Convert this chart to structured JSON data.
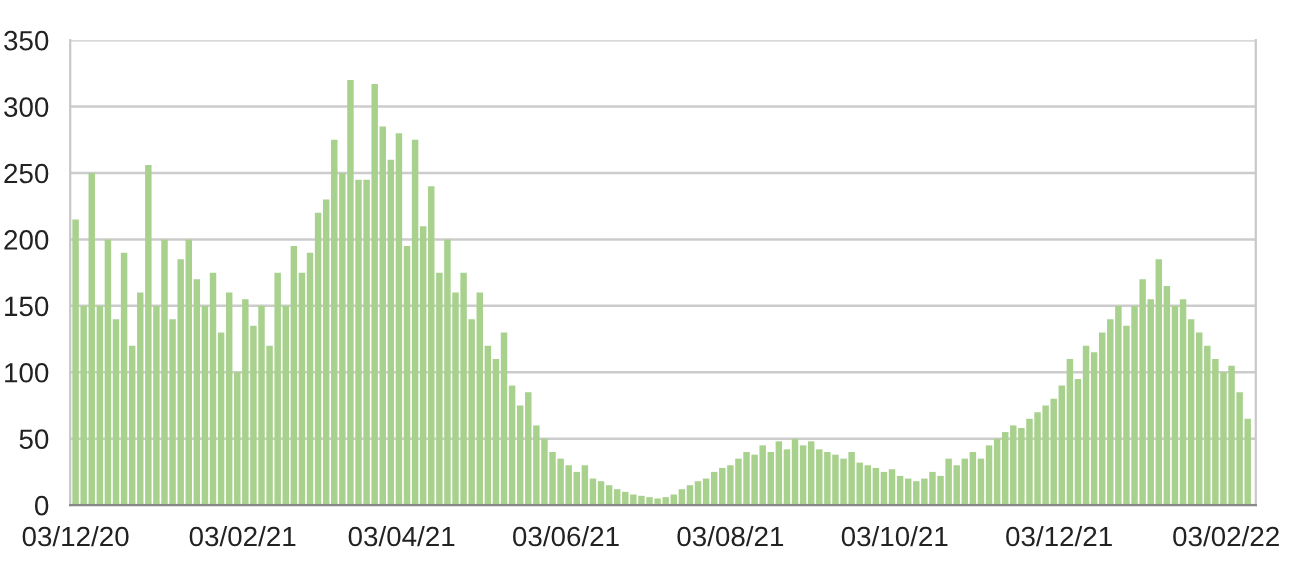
{
  "chart_data": {
    "type": "bar",
    "x": [
      "2020-12-03",
      "2020-12-06",
      "2020-12-09",
      "2020-12-12",
      "2020-12-15",
      "2020-12-18",
      "2020-12-21",
      "2020-12-24",
      "2020-12-27",
      "2020-12-30",
      "2021-01-02",
      "2021-01-05",
      "2021-01-08",
      "2021-01-11",
      "2021-01-14",
      "2021-01-17",
      "2021-01-20",
      "2021-01-23",
      "2021-01-26",
      "2021-01-29",
      "2021-02-01",
      "2021-02-04",
      "2021-02-07",
      "2021-02-10",
      "2021-02-13",
      "2021-02-16",
      "2021-02-19",
      "2021-02-22",
      "2021-02-25",
      "2021-02-28",
      "2021-03-03",
      "2021-03-06",
      "2021-03-09",
      "2021-03-12",
      "2021-03-15",
      "2021-03-18",
      "2021-03-21",
      "2021-03-24",
      "2021-03-27",
      "2021-03-30",
      "2021-04-02",
      "2021-04-05",
      "2021-04-08",
      "2021-04-11",
      "2021-04-14",
      "2021-04-17",
      "2021-04-20",
      "2021-04-23",
      "2021-04-26",
      "2021-04-29",
      "2021-05-02",
      "2021-05-05",
      "2021-05-08",
      "2021-05-11",
      "2021-05-14",
      "2021-05-17",
      "2021-05-20",
      "2021-05-23",
      "2021-05-26",
      "2021-05-29",
      "2021-06-01",
      "2021-06-04",
      "2021-06-07",
      "2021-06-10",
      "2021-06-13",
      "2021-06-16",
      "2021-06-19",
      "2021-06-22",
      "2021-06-25",
      "2021-06-28",
      "2021-07-01",
      "2021-07-04",
      "2021-07-07",
      "2021-07-10",
      "2021-07-13",
      "2021-07-16",
      "2021-07-19",
      "2021-07-22",
      "2021-07-25",
      "2021-07-28",
      "2021-07-31",
      "2021-08-03",
      "2021-08-06",
      "2021-08-09",
      "2021-08-12",
      "2021-08-15",
      "2021-08-18",
      "2021-08-21",
      "2021-08-24",
      "2021-08-27",
      "2021-08-30",
      "2021-09-02",
      "2021-09-05",
      "2021-09-08",
      "2021-09-11",
      "2021-09-14",
      "2021-09-17",
      "2021-09-20",
      "2021-09-23",
      "2021-09-26",
      "2021-09-29",
      "2021-10-02",
      "2021-10-05",
      "2021-10-08",
      "2021-10-11",
      "2021-10-14",
      "2021-10-17",
      "2021-10-20",
      "2021-10-23",
      "2021-10-26",
      "2021-10-29",
      "2021-11-01",
      "2021-11-04",
      "2021-11-07",
      "2021-11-10",
      "2021-11-13",
      "2021-11-16",
      "2021-11-19",
      "2021-11-22",
      "2021-11-25",
      "2021-11-28",
      "2021-12-01",
      "2021-12-04",
      "2021-12-07",
      "2021-12-10",
      "2021-12-13",
      "2021-12-16",
      "2021-12-19",
      "2021-12-22",
      "2021-12-25",
      "2021-12-28",
      "2021-12-31",
      "2022-01-03",
      "2022-01-06",
      "2022-01-09",
      "2022-01-12",
      "2022-01-15",
      "2022-01-18",
      "2022-01-21",
      "2022-01-24",
      "2022-01-27",
      "2022-01-30",
      "2022-02-02",
      "2022-02-05",
      "2022-02-08",
      "2022-02-11"
    ],
    "values": [
      215,
      150,
      250,
      150,
      200,
      140,
      190,
      120,
      160,
      256,
      150,
      200,
      140,
      185,
      200,
      170,
      150,
      175,
      130,
      160,
      100,
      155,
      135,
      150,
      120,
      175,
      150,
      195,
      175,
      190,
      220,
      230,
      275,
      250,
      320,
      245,
      245,
      317,
      285,
      260,
      280,
      195,
      275,
      210,
      240,
      175,
      200,
      160,
      175,
      140,
      160,
      120,
      110,
      130,
      90,
      75,
      85,
      60,
      50,
      40,
      35,
      30,
      25,
      30,
      20,
      18,
      15,
      12,
      10,
      8,
      7,
      6,
      5,
      6,
      8,
      12,
      15,
      18,
      20,
      25,
      28,
      30,
      35,
      40,
      38,
      45,
      40,
      48,
      42,
      50,
      45,
      48,
      42,
      40,
      38,
      35,
      40,
      32,
      30,
      28,
      25,
      27,
      22,
      20,
      18,
      20,
      25,
      22,
      35,
      30,
      35,
      40,
      35,
      45,
      50,
      55,
      60,
      58,
      65,
      70,
      75,
      80,
      90,
      110,
      95,
      120,
      115,
      130,
      140,
      150,
      135,
      150,
      170,
      155,
      185,
      165,
      150,
      155,
      140,
      130,
      120,
      110,
      100,
      105,
      85,
      65
    ],
    "color": "#a9d18e",
    "xlim": [
      "2020-12-01",
      "2022-02-14"
    ],
    "xticks": [
      {
        "value": "2020-12-03",
        "label": "03/12/20"
      },
      {
        "value": "2021-02-03",
        "label": "03/02/21"
      },
      {
        "value": "2021-04-03",
        "label": "03/04/21"
      },
      {
        "value": "2021-06-03",
        "label": "03/06/21"
      },
      {
        "value": "2021-08-03",
        "label": "03/08/21"
      },
      {
        "value": "2021-10-03",
        "label": "03/10/21"
      },
      {
        "value": "2021-12-03",
        "label": "03/12/21"
      },
      {
        "value": "2022-02-03",
        "label": "03/02/22"
      }
    ],
    "ylim": [
      0,
      350
    ],
    "yticks": [
      0,
      50,
      100,
      150,
      200,
      250,
      300,
      350
    ],
    "grid": "y"
  }
}
